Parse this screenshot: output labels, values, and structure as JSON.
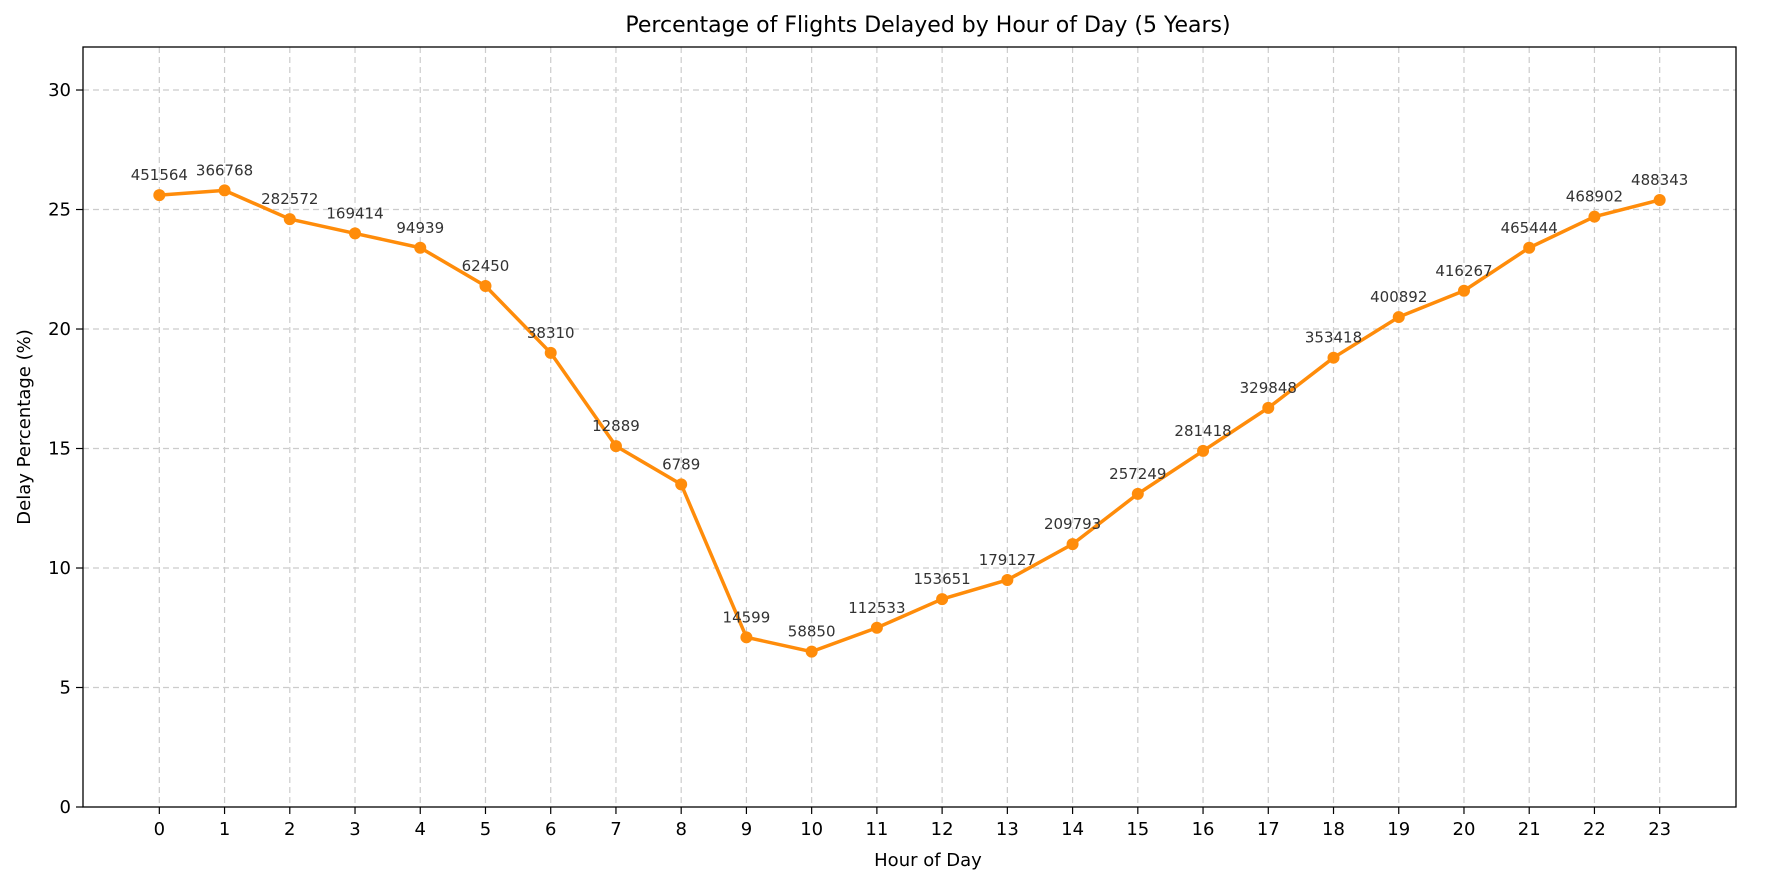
{
  "chart_data": {
    "type": "line",
    "title": "Percentage of Flights Delayed by Hour of Day (5 Years)",
    "xlabel": "Hour of Day",
    "ylabel": "Delay Percentage (%)",
    "x": [
      0,
      1,
      2,
      3,
      4,
      5,
      6,
      7,
      8,
      9,
      10,
      11,
      12,
      13,
      14,
      15,
      16,
      17,
      18,
      19,
      20,
      21,
      22,
      23
    ],
    "xlim": [
      -1.17,
      24.17
    ],
    "ylim": [
      0,
      31.8
    ],
    "yticks": [
      0,
      5,
      10,
      15,
      20,
      25,
      30
    ],
    "grid": true,
    "series": [
      {
        "values": [
          25.6,
          25.8,
          24.6,
          24.0,
          23.4,
          21.8,
          19.0,
          15.1,
          13.5,
          7.1,
          6.5,
          7.5,
          8.7,
          9.5,
          11.0,
          13.1,
          14.9,
          16.7,
          18.8,
          20.5,
          21.6,
          23.4,
          24.7,
          25.4
        ],
        "point_labels": [
          "451564",
          "366768",
          "282572",
          "169414",
          "94939",
          "62450",
          "38310",
          "12889",
          "6789",
          "14599",
          "58850",
          "112533",
          "153651",
          "179127",
          "209793",
          "257249",
          "281418",
          "329848",
          "353418",
          "400892",
          "416267",
          "465444",
          "468902",
          "488343"
        ],
        "color": "#ff8c0a"
      }
    ]
  }
}
